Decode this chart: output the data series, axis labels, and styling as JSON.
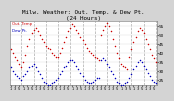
{
  "title": "Milw. Weather: Out. Temp. & Dew Pt.\n(24 Hours)",
  "background_color": "#d4d4d4",
  "plot_bg": "#ffffff",
  "red_label": "Out. Temp",
  "blue_label": "Dew Pt.",
  "ylim": [
    22,
    58
  ],
  "ytick_values": [
    25,
    30,
    35,
    40,
    45,
    50,
    55
  ],
  "ytick_labels": [
    "25",
    "30",
    "35",
    "40",
    "45",
    "50",
    "55"
  ],
  "grid_color": "#aaaaaa",
  "red_color": "#cc0000",
  "blue_color": "#0000bb",
  "black_color": "#000000",
  "temp_x": [
    0,
    1,
    2,
    3,
    4,
    5,
    6,
    7,
    8,
    9,
    10,
    11,
    12,
    13,
    14,
    15,
    16,
    17,
    18,
    19,
    20,
    21,
    22,
    23,
    24,
    25,
    26,
    27,
    28,
    29,
    30,
    31,
    32,
    33,
    34,
    35,
    36,
    37,
    38,
    39,
    40,
    41,
    42,
    43,
    44,
    45,
    46,
    47,
    48,
    49,
    50,
    51,
    52,
    53,
    54,
    55,
    56,
    57,
    58,
    59,
    60,
    61,
    62,
    63,
    64,
    65,
    66,
    67,
    68,
    69,
    70,
    71
  ],
  "temp_y": [
    42,
    40,
    38,
    36,
    34,
    32,
    35,
    39,
    44,
    48,
    51,
    53,
    54,
    52,
    50,
    48,
    46,
    44,
    43,
    42,
    40,
    39,
    38,
    38,
    40,
    43,
    46,
    49,
    52,
    54,
    56,
    55,
    53,
    51,
    49,
    47,
    45,
    43,
    41,
    40,
    39,
    38,
    37,
    36,
    50,
    53,
    55,
    57,
    55,
    52,
    48,
    44,
    40,
    37,
    34,
    33,
    32,
    31,
    38,
    42,
    46,
    49,
    52,
    54,
    53,
    51,
    48,
    45,
    42,
    39,
    37,
    35
  ],
  "dew_x": [
    0,
    1,
    2,
    3,
    4,
    5,
    6,
    7,
    8,
    9,
    10,
    11,
    12,
    13,
    14,
    15,
    16,
    17,
    18,
    19,
    20,
    21,
    22,
    23,
    24,
    25,
    26,
    27,
    28,
    29,
    30,
    31,
    32,
    33,
    34,
    35,
    36,
    37,
    38,
    39,
    40,
    41,
    42,
    43,
    44,
    45,
    46,
    47,
    48,
    49,
    50,
    51,
    52,
    53,
    54,
    55,
    56,
    57,
    58,
    59,
    60,
    61,
    62,
    63,
    64,
    65,
    66,
    67,
    68,
    69,
    70,
    71
  ],
  "dew_y": [
    32,
    30,
    28,
    27,
    26,
    25,
    27,
    28,
    30,
    32,
    33,
    34,
    32,
    30,
    28,
    26,
    24,
    23,
    22,
    22,
    23,
    24,
    25,
    26,
    28,
    30,
    32,
    33,
    35,
    36,
    36,
    35,
    33,
    31,
    29,
    27,
    25,
    24,
    23,
    23,
    24,
    25,
    26,
    26,
    36,
    37,
    36,
    34,
    32,
    30,
    28,
    26,
    24,
    23,
    22,
    22,
    23,
    24,
    26,
    28,
    31,
    33,
    35,
    36,
    35,
    33,
    31,
    29,
    27,
    25,
    24,
    23
  ],
  "vline_x": [
    5,
    11,
    17,
    23,
    29,
    35,
    41,
    47,
    53,
    59,
    65,
    71
  ],
  "xlim": [
    -0.5,
    71.5
  ],
  "xtick_pos": [
    0,
    2,
    4,
    6,
    8,
    10,
    12,
    14,
    16,
    18,
    20,
    22,
    24,
    26,
    28,
    30,
    32,
    34,
    36,
    38,
    40,
    42,
    44,
    46,
    48,
    50,
    52,
    54,
    56,
    58,
    60,
    62,
    64,
    66,
    68,
    70
  ],
  "xtick_labels": [
    "1",
    "3",
    "5",
    "1",
    "3",
    "5",
    "1",
    "3",
    "5",
    "1",
    "3",
    "5",
    "1",
    "3",
    "5",
    "1",
    "3",
    "5",
    "1",
    "3",
    "5",
    "1",
    "3",
    "5",
    "1",
    "3",
    "5",
    "1",
    "3",
    "5",
    "1",
    "3",
    "5",
    "1",
    "3",
    "5"
  ]
}
